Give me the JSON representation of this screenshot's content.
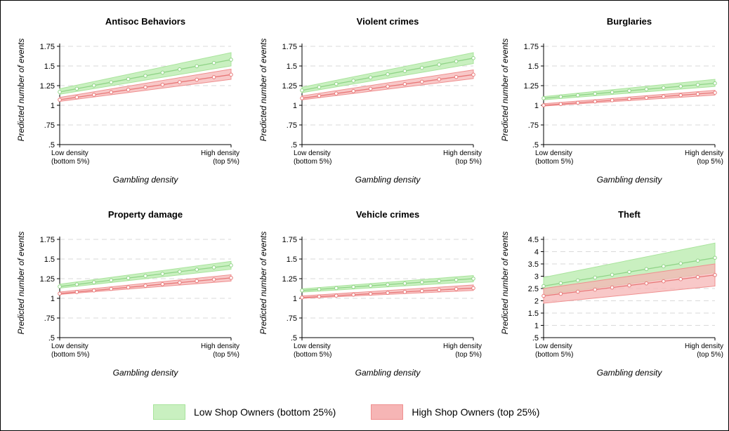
{
  "colors": {
    "low_band_fill": "#c9f0c0",
    "low_band_edge": "#a9e49c",
    "low_line": "#90d487",
    "high_band_fill": "#f6b5b5",
    "high_band_edge": "#ef9090",
    "high_line": "#e87878",
    "overlap_fill": "#d9a080",
    "grid": "#d9d9d9",
    "axis": "#000000"
  },
  "legend": {
    "low_label": "Low Shop Owners (bottom 25%)",
    "high_label": "High Shop Owners (top 25%)"
  },
  "chart_data": [
    {
      "type": "line",
      "title": "Antisoc Behaviors",
      "ylabel": "Predicted number of events",
      "xlabel": "Gambling density",
      "x_tick_labels": [
        [
          "Low density",
          "(bottom 5%)"
        ],
        [
          "High density",
          "(top 5%)"
        ]
      ],
      "yticks": [
        ".5",
        ".75",
        "1",
        "1.25",
        "1.5",
        "1.75"
      ],
      "ylim": [
        0.5,
        1.75
      ],
      "grid": true,
      "series": [
        {
          "name": "Low Shop Owners (bottom 25%)",
          "start": 1.17,
          "end": 1.58,
          "ci_start": [
            1.14,
            1.21
          ],
          "ci_end": [
            1.5,
            1.67
          ]
        },
        {
          "name": "High Shop Owners (top 25%)",
          "start": 1.07,
          "end": 1.39,
          "ci_start": [
            1.05,
            1.1
          ],
          "ci_end": [
            1.33,
            1.46
          ]
        }
      ]
    },
    {
      "type": "line",
      "title": "Violent crimes",
      "ylabel": "Predicted number of events",
      "xlabel": "Gambling density",
      "x_tick_labels": [
        [
          "Low density",
          "(bottom 5%)"
        ],
        [
          "High density",
          "(top 5%)"
        ]
      ],
      "yticks": [
        ".5",
        ".75",
        "1",
        "1.25",
        "1.5",
        "1.75"
      ],
      "ylim": [
        0.5,
        1.75
      ],
      "grid": true,
      "series": [
        {
          "name": "Low Shop Owners (bottom 25%)",
          "start": 1.19,
          "end": 1.6,
          "ci_start": [
            1.16,
            1.23
          ],
          "ci_end": [
            1.53,
            1.67
          ]
        },
        {
          "name": "High Shop Owners (top 25%)",
          "start": 1.09,
          "end": 1.39,
          "ci_start": [
            1.07,
            1.12
          ],
          "ci_end": [
            1.34,
            1.45
          ]
        }
      ]
    },
    {
      "type": "line",
      "title": "Burglaries",
      "ylabel": "Predicted number of events",
      "xlabel": "Gambling density",
      "x_tick_labels": [
        [
          "Low density",
          "(bottom 5%)"
        ],
        [
          "High density",
          "(top 5%)"
        ]
      ],
      "yticks": [
        ".5",
        ".75",
        "1",
        "1.25",
        "1.5",
        "1.75"
      ],
      "ylim": [
        0.5,
        1.75
      ],
      "grid": true,
      "series": [
        {
          "name": "Low Shop Owners (bottom 25%)",
          "start": 1.09,
          "end": 1.28,
          "ci_start": [
            1.07,
            1.11
          ],
          "ci_end": [
            1.24,
            1.33
          ]
        },
        {
          "name": "High Shop Owners (top 25%)",
          "start": 1.0,
          "end": 1.16,
          "ci_start": [
            0.99,
            1.02
          ],
          "ci_end": [
            1.13,
            1.19
          ]
        }
      ]
    },
    {
      "type": "line",
      "title": "Property damage",
      "ylabel": "Predicted number of events",
      "xlabel": "Gambling density",
      "x_tick_labels": [
        [
          "Low density",
          "(bottom 5%)"
        ],
        [
          "High density",
          "(top 5%)"
        ]
      ],
      "yticks": [
        ".5",
        ".75",
        "1",
        "1.25",
        "1.5",
        "1.75"
      ],
      "ylim": [
        0.5,
        1.75
      ],
      "grid": true,
      "series": [
        {
          "name": "Low Shop Owners (bottom 25%)",
          "start": 1.15,
          "end": 1.42,
          "ci_start": [
            1.13,
            1.18
          ],
          "ci_end": [
            1.37,
            1.47
          ]
        },
        {
          "name": "High Shop Owners (top 25%)",
          "start": 1.06,
          "end": 1.26,
          "ci_start": [
            1.05,
            1.08
          ],
          "ci_end": [
            1.22,
            1.3
          ]
        }
      ]
    },
    {
      "type": "line",
      "title": "Vehicle crimes",
      "ylabel": "Predicted number of events",
      "xlabel": "Gambling density",
      "x_tick_labels": [
        [
          "Low density",
          "(bottom 5%)"
        ],
        [
          "High density",
          "(top 5%)"
        ]
      ],
      "yticks": [
        ".5",
        ".75",
        "1",
        "1.25",
        "1.5",
        "1.75"
      ],
      "ylim": [
        0.5,
        1.75
      ],
      "grid": true,
      "series": [
        {
          "name": "Low Shop Owners (bottom 25%)",
          "start": 1.1,
          "end": 1.25,
          "ci_start": [
            1.08,
            1.12
          ],
          "ci_end": [
            1.21,
            1.29
          ]
        },
        {
          "name": "High Shop Owners (top 25%)",
          "start": 1.01,
          "end": 1.13,
          "ci_start": [
            1.0,
            1.03
          ],
          "ci_end": [
            1.1,
            1.17
          ]
        }
      ]
    },
    {
      "type": "line",
      "title": "Theft",
      "ylabel": "Predicted number of events",
      "xlabel": "Gambling density",
      "x_tick_labels": [
        [
          "Low density",
          "(bottom 5%)"
        ],
        [
          "High density",
          "(top 5%)"
        ]
      ],
      "yticks": [
        ".5",
        "1",
        "1.5",
        "2",
        "2.5",
        "3",
        "3.5",
        "4",
        "4.5"
      ],
      "ylim": [
        0.5,
        4.5
      ],
      "grid": true,
      "series": [
        {
          "name": "Low Shop Owners (bottom 25%)",
          "start": 2.6,
          "end": 3.75,
          "ci_start": [
            2.25,
            2.95
          ],
          "ci_end": [
            3.15,
            4.35
          ]
        },
        {
          "name": "High Shop Owners (top 25%)",
          "start": 2.2,
          "end": 3.05,
          "ci_start": [
            1.9,
            2.5
          ],
          "ci_end": [
            2.6,
            3.5
          ]
        }
      ]
    }
  ]
}
